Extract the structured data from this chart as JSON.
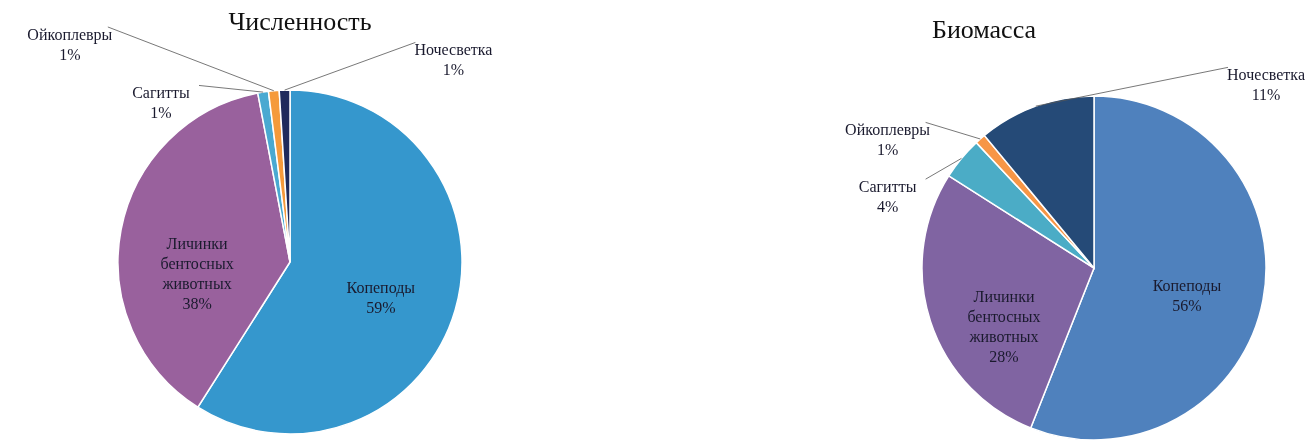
{
  "chart_data": [
    {
      "type": "pie",
      "title": "Численность",
      "categories": [
        "Копеподы",
        "Личинки бентосных животных",
        "Сагитты",
        "Ойкоплевры",
        "Ночесветка"
      ],
      "values": [
        59,
        38,
        1,
        1,
        1
      ],
      "value_labels": [
        "59%",
        "38%",
        "1%",
        "1%",
        "1%"
      ],
      "colors": [
        "#3597cd",
        "#99619d",
        "#49a9d1",
        "#f59a3b",
        "#1f2a5c"
      ]
    },
    {
      "type": "pie",
      "title": "Биомасса",
      "categories": [
        "Копеподы",
        "Личинки бентосных животных",
        "Сагитты",
        "Ойкоплевры",
        "Ночесветка"
      ],
      "values": [
        56,
        28,
        4,
        1,
        11
      ],
      "value_labels": [
        "56%",
        "28%",
        "4%",
        "1%",
        "11%"
      ],
      "colors": [
        "#4f81bd",
        "#8064a2",
        "#4bacc6",
        "#f79646",
        "#254a77"
      ]
    }
  ]
}
